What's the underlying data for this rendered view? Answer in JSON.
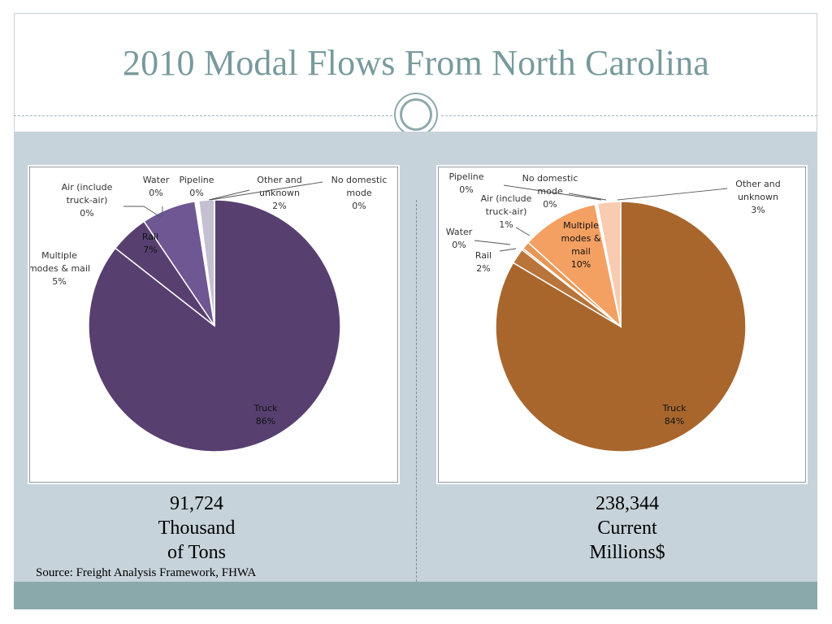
{
  "slide": {
    "title": "2010 Modal Flows From North Carolina",
    "source": "Source: Freight Analysis Framework, FHWA",
    "colors": {
      "title": "#789a9c",
      "band": "#c6d3da",
      "footer": "#8aa9ab"
    }
  },
  "captions": {
    "left": [
      "91,724",
      "Thousand",
      "of Tons"
    ],
    "right": [
      "238,344",
      "Current",
      "Millions$"
    ]
  },
  "chart_data": [
    {
      "type": "pie",
      "title": "",
      "unit_caption": "91,724 Thousand of Tons",
      "slices": [
        {
          "label": [
            "Truck"
          ],
          "pct_label": "86%",
          "value": 86,
          "color": "#574070"
        },
        {
          "label": [
            "Multiple",
            "modes & mail"
          ],
          "pct_label": "5%",
          "value": 5,
          "color": "#574070"
        },
        {
          "label": [
            "Rail"
          ],
          "pct_label": "7%",
          "value": 7,
          "color": "#6e5793"
        },
        {
          "label": [
            "Air (include",
            "truck-air)"
          ],
          "pct_label": "0%",
          "value": 0,
          "color": "#7f6aa6"
        },
        {
          "label": [
            "Water"
          ],
          "pct_label": "0%",
          "value": 0,
          "color": "#8c79b1"
        },
        {
          "label": [
            "Pipeline"
          ],
          "pct_label": "0%",
          "value": 0,
          "color": "#9a88c0"
        },
        {
          "label": [
            "Other and",
            "unknown"
          ],
          "pct_label": "2%",
          "value": 2,
          "color": "#c5bfd3"
        },
        {
          "label": [
            "No domestic",
            "mode"
          ],
          "pct_label": "0%",
          "value": 0,
          "color": "#d5d0df"
        }
      ],
      "slice_order": [
        0,
        1,
        2,
        3,
        4,
        5,
        6,
        7
      ]
    },
    {
      "type": "pie",
      "title": "",
      "unit_caption": "238,344 Current Millions$",
      "slices": [
        {
          "label": [
            "Truck"
          ],
          "pct_label": "84%",
          "value": 84,
          "color": "#a8662d"
        },
        {
          "label": [
            "Rail"
          ],
          "pct_label": "2%",
          "value": 2,
          "color": "#b8743a"
        },
        {
          "label": [
            "Water"
          ],
          "pct_label": "0%",
          "value": 0,
          "color": "#c88545"
        },
        {
          "label": [
            "Air (include",
            "truck-air)"
          ],
          "pct_label": "1%",
          "value": 1,
          "color": "#e69756"
        },
        {
          "label": [
            "Multiple",
            "modes &",
            "mail"
          ],
          "pct_label": "10%",
          "value": 10,
          "color": "#f4a062"
        },
        {
          "label": [
            "Pipeline"
          ],
          "pct_label": "0%",
          "value": 0,
          "color": "#f6b58a"
        },
        {
          "label": [
            "No domestic",
            "mode"
          ],
          "pct_label": "0%",
          "value": 0,
          "color": "#f8c6a6"
        },
        {
          "label": [
            "Other and",
            "unknown"
          ],
          "pct_label": "3%",
          "value": 3,
          "color": "#f9cbb0"
        }
      ]
    }
  ]
}
